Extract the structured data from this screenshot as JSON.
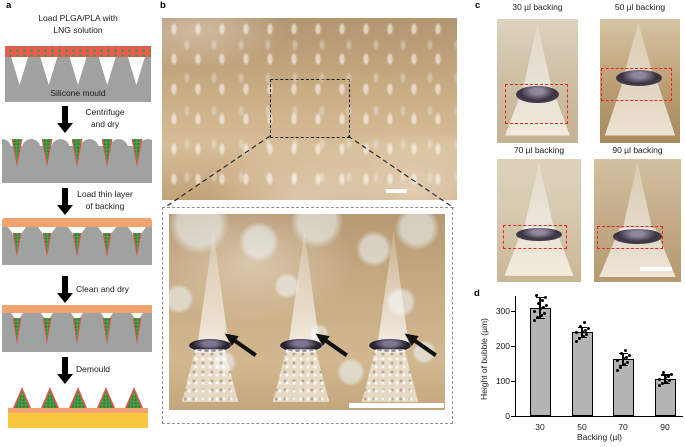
{
  "panel_a": {
    "label": "a",
    "title_lines": [
      "Load PLGA/PLA with",
      "LNG solution"
    ],
    "mould_label": "Silicone mould",
    "step_arrows": [
      {
        "lines": [
          "Centrifuge",
          "and dry"
        ]
      },
      {
        "lines": [
          "Load thin layer",
          "of backing"
        ]
      },
      {
        "lines": [
          "Clean and dry"
        ]
      },
      {
        "lines": [
          "Demould"
        ]
      }
    ],
    "colors": {
      "solution_red": "#ef5a51",
      "drug_green": "#49a04b",
      "mould_grey": "#a0a2a1",
      "backing_orange": "#f2a470",
      "base_yellow": "#f9c63f"
    }
  },
  "panel_b": {
    "label": "b"
  },
  "panel_c": {
    "label": "c",
    "photo_labels": [
      "30 µl backing",
      "50 µl backing",
      "70 µl backing",
      "90 µl backing"
    ],
    "highlight_color": "#e8261d"
  },
  "panel_d": {
    "label": "d"
  },
  "chart_data": {
    "type": "bar",
    "title": "",
    "categories": [
      "30",
      "50",
      "70",
      "90"
    ],
    "values": [
      310,
      240,
      163,
      107
    ],
    "errors": [
      30,
      15,
      18,
      12
    ],
    "points": [
      [
        272,
        281,
        288,
        294,
        300,
        306,
        311,
        316,
        322,
        330,
        338,
        345
      ],
      [
        214,
        221,
        227,
        233,
        238,
        241,
        245,
        250,
        257,
        268
      ],
      [
        131,
        140,
        147,
        153,
        158,
        163,
        168,
        173,
        179,
        186
      ],
      [
        86,
        92,
        97,
        101,
        105,
        109,
        113,
        118,
        125
      ]
    ],
    "xlabel": "Backing (µl)",
    "ylabel": "Height of bubble (µm)",
    "yticks": [
      0,
      100,
      200,
      300
    ],
    "ylim": [
      0,
      350
    ],
    "grid": false,
    "legend": null,
    "bar_color": "#b4b4b4",
    "bar_edge_color": "#000000",
    "point_color": "#000000"
  }
}
